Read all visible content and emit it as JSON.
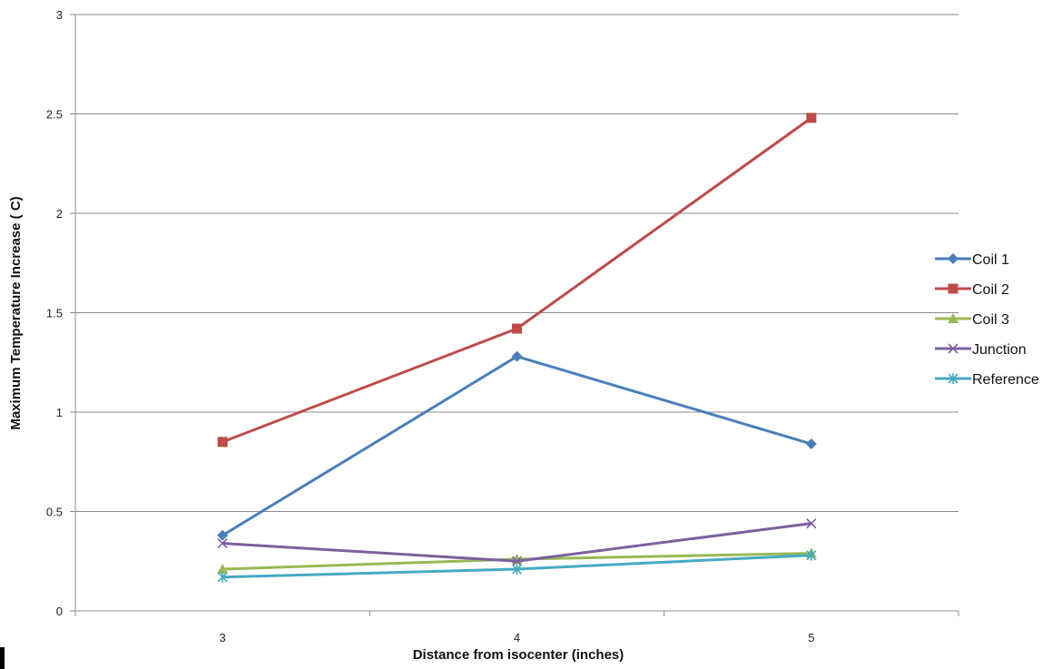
{
  "chart_data": {
    "type": "line",
    "title": "",
    "xlabel": "Distance from isocenter (inches)",
    "ylabel": "Maximum Temperature Increase ( C)",
    "x": [
      3,
      4,
      5
    ],
    "categories": [
      "3",
      "4",
      "5"
    ],
    "ylim": [
      0,
      3
    ],
    "yticks": [
      "0",
      "0.5",
      "1",
      "1.5",
      "2",
      "2.5",
      "3"
    ],
    "grid": true,
    "legend_position": "right",
    "series": [
      {
        "name": "Coil 1",
        "values": [
          0.38,
          1.28,
          0.84
        ],
        "color": "#4a7ebb",
        "marker": "diamond"
      },
      {
        "name": "Coil 2",
        "values": [
          0.85,
          1.42,
          2.48
        ],
        "color": "#be4b48",
        "marker": "square"
      },
      {
        "name": "Coil 3",
        "values": [
          0.21,
          0.26,
          0.29
        ],
        "color": "#98b954",
        "marker": "triangle"
      },
      {
        "name": "Junction",
        "values": [
          0.34,
          0.25,
          0.44
        ],
        "color": "#7d60a0",
        "marker": "x"
      },
      {
        "name": "Reference",
        "values": [
          0.17,
          0.21,
          0.28
        ],
        "color": "#46aac4",
        "marker": "star"
      }
    ]
  }
}
